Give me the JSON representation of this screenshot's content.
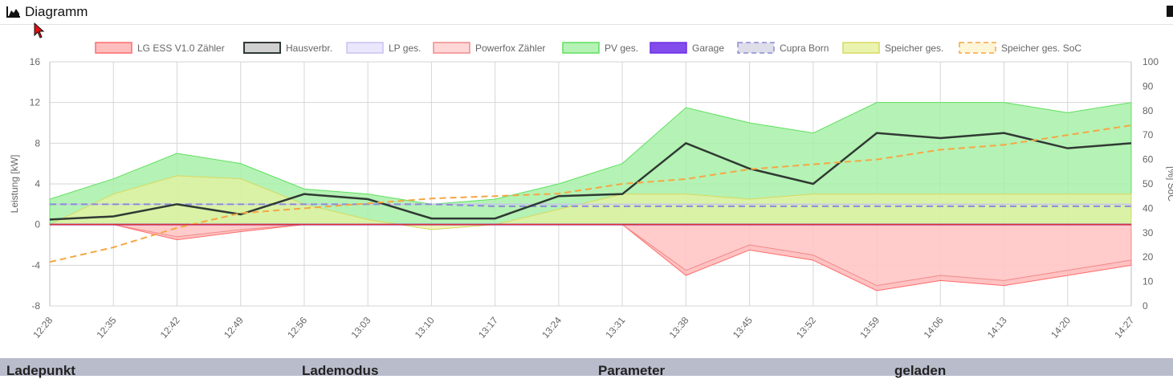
{
  "header": {
    "title": "Diagramm",
    "icon": "area-chart-icon"
  },
  "table": {
    "columns": [
      "Ladepunkt",
      "Lademodus",
      "Parameter",
      "geladen"
    ]
  },
  "chart_data": {
    "type": "area",
    "title": "",
    "xlabel": "",
    "ylabel": "Leistung [kW]",
    "y2label": "[%] SoC",
    "ylim": [
      -8,
      16
    ],
    "y2lim": [
      0,
      100
    ],
    "yticks": [
      -8,
      -4,
      0,
      4,
      8,
      12,
      16
    ],
    "y2ticks": [
      0,
      10,
      20,
      30,
      40,
      50,
      60,
      70,
      80,
      90,
      100
    ],
    "grid": true,
    "legend_position": "top",
    "x": [
      "12:28",
      "12:35",
      "12:42",
      "12:49",
      "12:56",
      "13:03",
      "13:10",
      "13:17",
      "13:24",
      "13:31",
      "13:38",
      "13:45",
      "13:52",
      "13:59",
      "14:06",
      "14:13",
      "14:20",
      "14:27"
    ],
    "series": [
      {
        "name": "LG ESS V1.0 Zähler",
        "color": "#ff6b6b",
        "fill": "#ffb3b3",
        "values": [
          0,
          0,
          -1.5,
          -0.7,
          0,
          0,
          0,
          0,
          0,
          0,
          -5.0,
          -2.5,
          -3.5,
          -6.5,
          -5.5,
          -6.0,
          -5.0,
          -4.0
        ]
      },
      {
        "name": "Hausverbr.",
        "color": "#2f3a33",
        "fill": "#c8c8c8",
        "values": [
          0.5,
          0.8,
          2.0,
          1.0,
          3.0,
          2.5,
          0.6,
          0.6,
          2.8,
          3.0,
          8.0,
          5.5,
          4.0,
          9.0,
          8.5,
          9.0,
          7.5,
          8.0
        ]
      },
      {
        "name": "LP ges.",
        "color": "#c9c2f0",
        "fill": "#e6e2fb",
        "values": [
          2.0,
          2.0,
          2.0,
          2.0,
          2.0,
          2.0,
          2.0,
          2.0,
          2.0,
          2.0,
          2.0,
          2.0,
          2.0,
          2.0,
          2.0,
          2.0,
          2.0,
          2.0
        ]
      },
      {
        "name": "Powerfox Zähler",
        "color": "#f08a8a",
        "fill": "#ffd0d0",
        "values": [
          0,
          0,
          -1.2,
          -0.5,
          0,
          0,
          0,
          0,
          0,
          0,
          -4.5,
          -2.0,
          -3.0,
          -6.0,
          -5.0,
          -5.5,
          -4.5,
          -3.5
        ]
      },
      {
        "name": "PV ges.",
        "color": "#5fe05f",
        "fill": "#a8f0a8",
        "values": [
          2.5,
          4.5,
          7.0,
          6.0,
          3.5,
          3.0,
          2.0,
          2.5,
          4.0,
          6.0,
          11.5,
          10.0,
          9.0,
          12.0,
          12.0,
          12.0,
          11.0,
          12.0
        ]
      },
      {
        "name": "Garage",
        "color": "#6c2ee8",
        "fill": "#6c2ee8",
        "values": [
          0,
          0,
          0,
          0,
          0,
          0,
          0,
          0,
          0,
          0,
          0,
          0,
          0,
          0,
          0,
          0,
          0,
          0
        ]
      },
      {
        "name": "Cupra Born",
        "color": "#8b8bd6",
        "fill": "#d8d8e8",
        "values": [
          2.0,
          2.0,
          2.0,
          2.0,
          2.0,
          2.0,
          2.0,
          1.8,
          1.8,
          1.8,
          1.8,
          1.8,
          1.8,
          1.8,
          1.8,
          1.8,
          1.8,
          1.8
        ]
      },
      {
        "name": "Speicher ges.",
        "color": "#d8d860",
        "fill": "#e8f2a0",
        "values": [
          0,
          3.0,
          4.8,
          4.5,
          2.0,
          0.5,
          -0.5,
          0,
          1.5,
          3.0,
          3.0,
          2.5,
          3.0,
          3.0,
          3.0,
          3.0,
          3.0,
          3.0
        ]
      },
      {
        "name": "Speicher ges. SoC",
        "color": "#f5a742",
        "fill": "#fff3d0",
        "axis": "right",
        "values": [
          18,
          24,
          32,
          38,
          40,
          42,
          44,
          45,
          46,
          50,
          52,
          56,
          58,
          60,
          64,
          66,
          70,
          74
        ]
      }
    ]
  }
}
